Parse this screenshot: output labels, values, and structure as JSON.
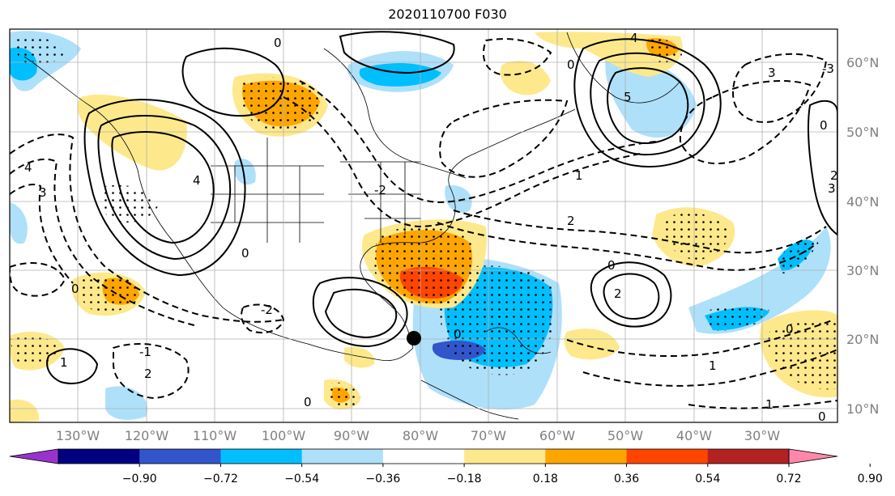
{
  "title": "2020110700 F030",
  "lon_labels": [
    "130°W",
    "120°W",
    "110°W",
    "100°W",
    "90°W",
    "80°W",
    "70°W",
    "60°W",
    "50°W",
    "40°W",
    "30°W"
  ],
  "lat_labels": [
    "60°N",
    "50°N",
    "40°N",
    "30°N",
    "20°N",
    "10°N"
  ],
  "colorbar": {
    "ticks": [
      "−0.90",
      "−0.72",
      "−0.54",
      "−0.36",
      "−0.18",
      "0.18",
      "0.36",
      "0.54",
      "0.72",
      "0.90"
    ],
    "colors": [
      "#9933cc",
      "#000080",
      "#3355cc",
      "#00bfff",
      "#aee0fa",
      "#ffffff",
      "#fde98c",
      "#ffa500",
      "#ff4500",
      "#b22222",
      "#ff88aa"
    ]
  },
  "contour_labels": [
    "0",
    "0",
    "0",
    "0",
    "0",
    "0",
    "0",
    "0",
    "0",
    "0",
    "1",
    "1",
    "1",
    "1",
    "2",
    "2",
    "2",
    "2",
    "3",
    "3",
    "3",
    "4",
    "4",
    "4",
    "5",
    "-1",
    "-2",
    "-2",
    "-3"
  ],
  "point_marker": "black-dot"
}
